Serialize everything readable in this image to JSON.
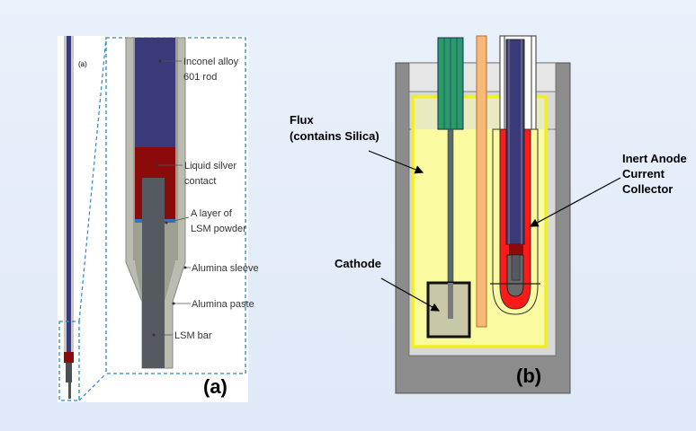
{
  "panel_a": {
    "tag_small": "(a)",
    "caption": "(a)",
    "labels": {
      "rod_line1": "Inconel alloy",
      "rod_line2": "601 rod",
      "silver_line1": "Liquid silver",
      "silver_line2": "contact",
      "lsm_layer_line1": "A layer of",
      "lsm_layer_line2": "LSM powder",
      "sleeve": "Alumina sleeve",
      "paste": "Alumina paste",
      "bar": "LSM bar"
    }
  },
  "panel_b": {
    "caption": "(b)",
    "labels": {
      "flux_line1": "Flux",
      "flux_line2": "(contains Silica)",
      "anode_line1": "Inert Anode",
      "anode_line2": "Current",
      "anode_line3": "Collector",
      "cathode": "Cathode"
    }
  },
  "colors": {
    "inconel": "#3a3a7a",
    "silver": "#8b0a0a",
    "alumina": "#b9bcae",
    "lsm": "#555a60",
    "flux": "#fafaa0",
    "flux_border": "#f0f020",
    "crucible": "#8c8c8c",
    "red": "#ff1a1a",
    "green": "#2a9a6a",
    "orange": "#f8b878"
  }
}
